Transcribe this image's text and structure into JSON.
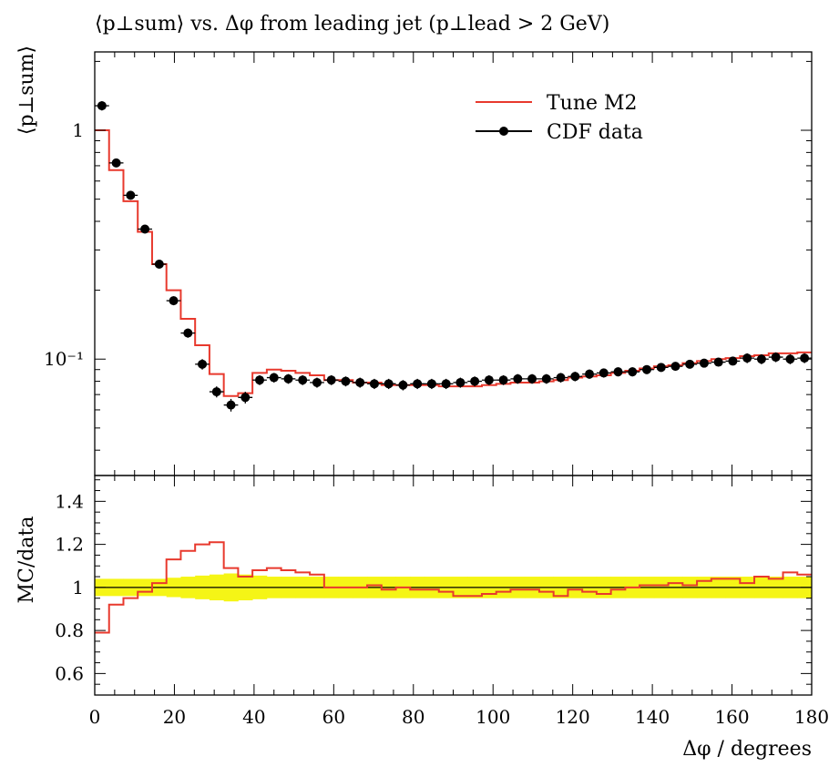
{
  "title": "⟨p⊥sum⟩ vs. Δφ from leading jet (p⊥lead > 2 GeV)",
  "colors": {
    "mc": "#e8392d",
    "data": "#000000",
    "band": "#f5f516",
    "frame": "#000000"
  },
  "chart_data": [
    {
      "type": "line",
      "panel": "main",
      "ylabel": "⟨p⊥sum⟩",
      "yscale": "log",
      "ylim": [
        0.031,
        2.2
      ],
      "xlim": [
        0,
        180
      ],
      "y_tick_labels": [
        {
          "value": 1,
          "text": "1"
        },
        {
          "value": 0.1,
          "text": "10⁻¹"
        }
      ],
      "legend": {
        "position": "top-right",
        "entries": [
          "Tune M2",
          "CDF data"
        ]
      },
      "bin_edges": [
        0,
        3.6,
        7.2,
        10.8,
        14.4,
        18,
        21.6,
        25.2,
        28.8,
        32.4,
        36,
        39.6,
        43.2,
        46.8,
        50.4,
        54,
        57.6,
        61.2,
        64.8,
        68.4,
        72,
        75.6,
        79.2,
        82.8,
        86.4,
        90,
        93.6,
        97.2,
        100.8,
        104.4,
        108,
        111.6,
        115.2,
        118.8,
        122.4,
        126,
        129.6,
        133.2,
        136.8,
        140.4,
        144,
        147.6,
        151.2,
        154.8,
        158.4,
        162,
        165.6,
        169.2,
        172.8,
        176.4,
        180
      ],
      "series": [
        {
          "name": "Tune M2",
          "style": "histogram",
          "values": [
            1.0,
            0.67,
            0.49,
            0.36,
            0.26,
            0.2,
            0.15,
            0.115,
            0.086,
            0.069,
            0.071,
            0.087,
            0.09,
            0.089,
            0.087,
            0.085,
            0.081,
            0.081,
            0.079,
            0.079,
            0.077,
            0.077,
            0.077,
            0.077,
            0.076,
            0.076,
            0.076,
            0.077,
            0.078,
            0.079,
            0.079,
            0.08,
            0.081,
            0.083,
            0.084,
            0.085,
            0.087,
            0.089,
            0.091,
            0.093,
            0.094,
            0.096,
            0.098,
            0.1,
            0.101,
            0.103,
            0.104,
            0.106,
            0.106,
            0.107
          ]
        },
        {
          "name": "CDF data",
          "style": "points",
          "values": [
            1.28,
            0.72,
            0.52,
            0.37,
            0.26,
            0.18,
            0.13,
            0.095,
            0.072,
            0.063,
            0.068,
            0.081,
            0.083,
            0.082,
            0.081,
            0.079,
            0.081,
            0.08,
            0.079,
            0.078,
            0.078,
            0.077,
            0.078,
            0.078,
            0.078,
            0.079,
            0.08,
            0.081,
            0.081,
            0.082,
            0.082,
            0.082,
            0.083,
            0.084,
            0.086,
            0.087,
            0.088,
            0.088,
            0.09,
            0.092,
            0.093,
            0.095,
            0.096,
            0.097,
            0.098,
            0.101,
            0.1,
            0.102,
            0.1,
            0.101
          ],
          "errors": [
            0.06,
            0.03,
            0.02,
            0.015,
            0.01,
            0.008,
            0.006,
            0.005,
            0.004,
            0.004,
            0.004,
            0.004,
            0.004,
            0.004,
            0.004,
            0.004,
            0.004,
            0.004,
            0.004,
            0.004,
            0.004,
            0.004,
            0.004,
            0.004,
            0.004,
            0.004,
            0.004,
            0.004,
            0.004,
            0.004,
            0.004,
            0.004,
            0.004,
            0.004,
            0.004,
            0.004,
            0.004,
            0.004,
            0.004,
            0.004,
            0.004,
            0.004,
            0.004,
            0.004,
            0.004,
            0.005,
            0.005,
            0.005,
            0.005,
            0.005
          ]
        }
      ]
    },
    {
      "type": "line",
      "panel": "ratio",
      "ylabel": "MC/data",
      "xlabel": "Δφ / degrees",
      "xlim": [
        0,
        180
      ],
      "ylim": [
        0.5,
        1.52
      ],
      "y_ticks": [
        0.6,
        0.8,
        1,
        1.2,
        1.4
      ],
      "y_tick_labels": [
        "0.6",
        "0.8",
        "1",
        "1.2",
        "1.4"
      ],
      "x_ticks": [
        0,
        20,
        40,
        60,
        80,
        100,
        120,
        140,
        160,
        180
      ],
      "x_tick_labels": [
        "0",
        "20",
        "40",
        "60",
        "80",
        "100",
        "120",
        "140",
        "160",
        "180"
      ],
      "series": [
        {
          "name": "Tune M2",
          "style": "histogram",
          "values": [
            0.79,
            0.92,
            0.95,
            0.98,
            1.02,
            1.13,
            1.17,
            1.2,
            1.21,
            1.09,
            1.05,
            1.08,
            1.09,
            1.08,
            1.07,
            1.06,
            1.0,
            1.0,
            1.0,
            1.01,
            0.99,
            1.0,
            0.99,
            0.99,
            0.98,
            0.96,
            0.96,
            0.97,
            0.98,
            0.99,
            0.99,
            0.98,
            0.96,
            0.99,
            0.98,
            0.97,
            0.99,
            1.0,
            1.01,
            1.01,
            1.02,
            1.01,
            1.03,
            1.04,
            1.04,
            1.02,
            1.05,
            1.04,
            1.07,
            1.06
          ]
        },
        {
          "name": "CDF data",
          "style": "uncertainty-band",
          "half_width": [
            0.04,
            0.04,
            0.04,
            0.04,
            0.04,
            0.045,
            0.05,
            0.055,
            0.06,
            0.065,
            0.06,
            0.055,
            0.05,
            0.05,
            0.05,
            0.05,
            0.05,
            0.05,
            0.05,
            0.05,
            0.05,
            0.05,
            0.05,
            0.05,
            0.05,
            0.05,
            0.05,
            0.05,
            0.05,
            0.05,
            0.05,
            0.05,
            0.05,
            0.05,
            0.05,
            0.05,
            0.05,
            0.05,
            0.05,
            0.05,
            0.05,
            0.05,
            0.05,
            0.05,
            0.05,
            0.05,
            0.05,
            0.05,
            0.05,
            0.05
          ]
        }
      ]
    }
  ]
}
